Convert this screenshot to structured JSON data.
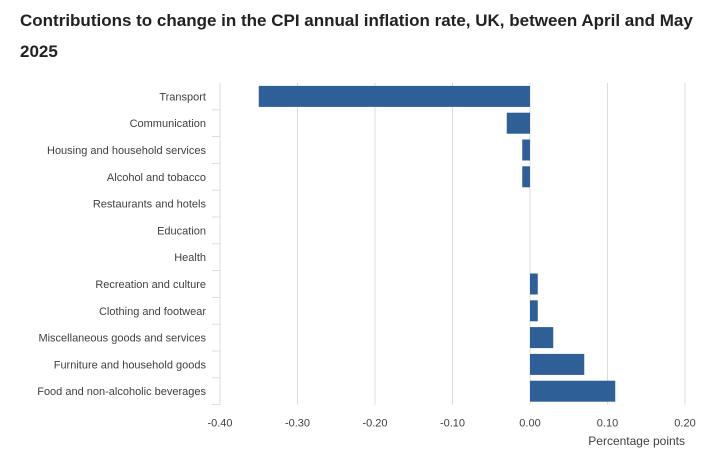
{
  "chart_data": {
    "type": "bar",
    "orientation": "horizontal",
    "title": "Contributions to change in the CPI annual inflation rate, UK, between April and May 2025",
    "categories": [
      "Transport",
      "Communication",
      "Housing and household services",
      "Alcohol and tobacco",
      "Restaurants and hotels",
      "Education",
      "Health",
      "Recreation and culture",
      "Clothing and footwear",
      "Miscellaneous goods and services",
      "Furniture and household goods",
      "Food and non-alcoholic beverages"
    ],
    "values": [
      -0.35,
      -0.03,
      -0.01,
      -0.01,
      0.0,
      0.0,
      0.0,
      0.01,
      0.01,
      0.03,
      0.07,
      0.11
    ],
    "xlim": [
      -0.4,
      0.2
    ],
    "xticks": [
      -0.4,
      -0.3,
      -0.2,
      -0.1,
      0.0,
      0.1,
      0.2
    ],
    "xtick_labels": [
      "-0.40",
      "-0.30",
      "-0.20",
      "-0.10",
      "0.00",
      "0.10",
      "0.20"
    ],
    "xlabel": "Percentage points",
    "ylabel": "",
    "grid": "vertical",
    "bar_color": "#2e5f96",
    "grid_color": "#d9dde3"
  }
}
